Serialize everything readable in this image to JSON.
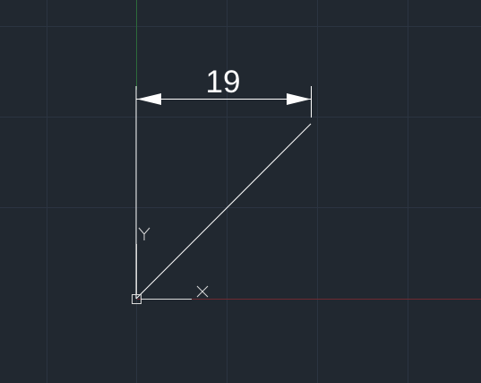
{
  "drawing": {
    "dimension_value": "19",
    "ucs_x_label": "X",
    "ucs_y_label": "Y"
  },
  "colors": {
    "background": "#212830",
    "grid_major": "#2e3845",
    "grid_minor": "#263039",
    "x_axis": "#7a2a30",
    "y_axis": "#2e6b3a",
    "geometry": "#ffffff",
    "ucs_icon": "#d0d0d0"
  },
  "icons": {
    "ucs": "ucs-icon",
    "origin": "origin-marker-icon"
  }
}
